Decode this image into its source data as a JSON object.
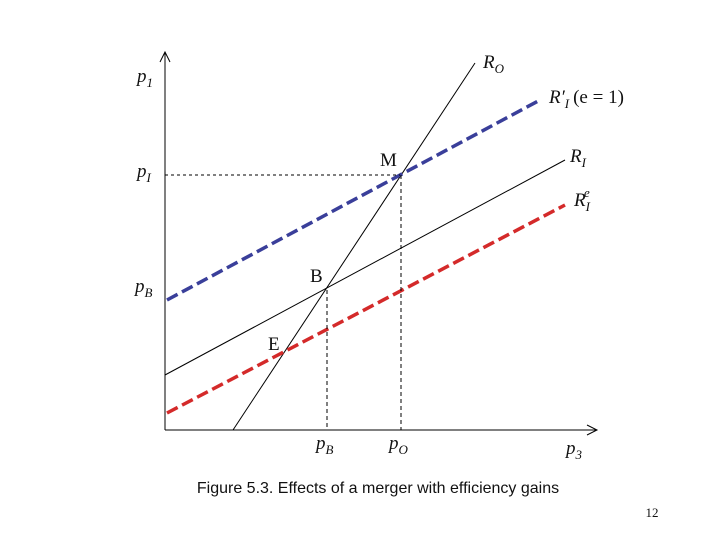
{
  "figure": {
    "y_labels": {
      "p1": {
        "base": "p",
        "sub": "1"
      },
      "pI": {
        "base": "p",
        "sub": "I"
      },
      "pB": {
        "base": "p",
        "sub": "B"
      }
    },
    "curves": {
      "RO": {
        "base": "R",
        "sub": "O"
      },
      "RI_prime": {
        "base": "R′",
        "sub": "I",
        "suffix": "(e = 1)"
      },
      "RI": {
        "base": "R",
        "sub": "I"
      },
      "RI_e": {
        "base": "R",
        "sub": "I",
        "sup": "e"
      }
    },
    "points": {
      "M": "M",
      "B": "B",
      "E": "E"
    },
    "x_labels": {
      "pB": {
        "base": "p",
        "sub": "B"
      },
      "pO": {
        "base": "p",
        "sub": "O"
      },
      "p3": {
        "base": "p",
        "sub": "3"
      }
    },
    "caption": "Figure 5.3. Effects of a merger with efficiency gains"
  },
  "page_number": "12"
}
